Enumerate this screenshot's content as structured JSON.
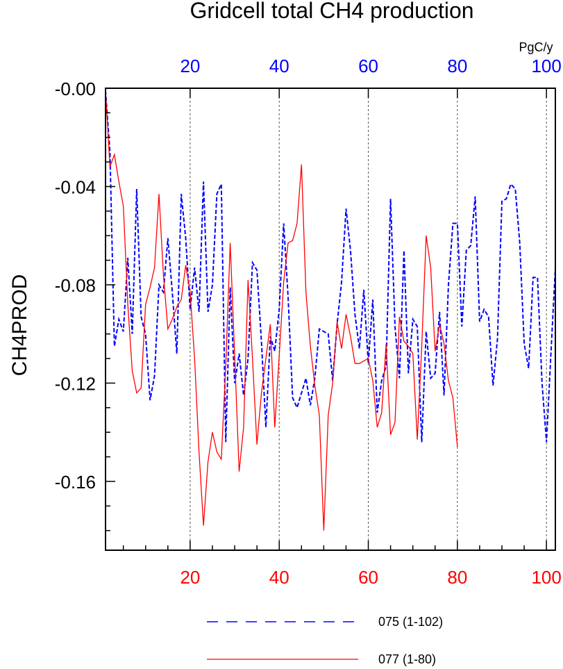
{
  "chart_data": {
    "type": "line",
    "title": "Gridcell total CH4 production",
    "ylabel": "CH4PROD",
    "units_label": "PgC/y",
    "ylim": [
      -0.188,
      0.0
    ],
    "yticks": [
      -0.0,
      -0.04,
      -0.08,
      -0.12,
      -0.16
    ],
    "ytick_labels": [
      "-0.00",
      "-0.04",
      "-0.08",
      "-0.12",
      "-0.16"
    ],
    "grid": "vertical dashed lines at 20, 40, 60, 80, 100",
    "legend_position": "bottom",
    "axes": {
      "top": {
        "color": "#0000ff",
        "xlim": [
          1,
          102
        ],
        "ticks": [
          20,
          40,
          60,
          80,
          100
        ],
        "tick_labels": [
          "20",
          "40",
          "60",
          "80",
          "100"
        ]
      },
      "bottom": {
        "color": "#ff0000",
        "xlim": [
          1,
          102
        ],
        "ticks": [
          20,
          40,
          60,
          80,
          100
        ],
        "tick_labels": [
          "20",
          "40",
          "60",
          "80",
          "100"
        ]
      }
    },
    "series": [
      {
        "name": "075 (1-102)",
        "color": "#0000ff",
        "style": "dashed",
        "x_start": 1,
        "values": [
          -0.001,
          -0.026,
          -0.105,
          -0.094,
          -0.099,
          -0.069,
          -0.1,
          -0.041,
          -0.093,
          -0.1,
          -0.127,
          -0.117,
          -0.08,
          -0.083,
          -0.061,
          -0.083,
          -0.108,
          -0.043,
          -0.061,
          -0.09,
          -0.073,
          -0.091,
          -0.038,
          -0.091,
          -0.08,
          -0.043,
          -0.039,
          -0.144,
          -0.081,
          -0.12,
          -0.108,
          -0.125,
          -0.11,
          -0.071,
          -0.074,
          -0.103,
          -0.138,
          -0.101,
          -0.107,
          -0.09,
          -0.055,
          -0.085,
          -0.126,
          -0.13,
          -0.124,
          -0.118,
          -0.129,
          -0.118,
          -0.098,
          -0.099,
          -0.1,
          -0.119,
          -0.096,
          -0.079,
          -0.049,
          -0.066,
          -0.092,
          -0.106,
          -0.082,
          -0.112,
          -0.086,
          -0.132,
          -0.119,
          -0.113,
          -0.045,
          -0.097,
          -0.118,
          -0.066,
          -0.116,
          -0.094,
          -0.097,
          -0.144,
          -0.099,
          -0.118,
          -0.116,
          -0.091,
          -0.125,
          -0.08,
          -0.055,
          -0.055,
          -0.097,
          -0.066,
          -0.064,
          -0.044,
          -0.095,
          -0.09,
          -0.093,
          -0.121,
          -0.102,
          -0.046,
          -0.045,
          -0.039,
          -0.041,
          -0.063,
          -0.104,
          -0.114,
          -0.077,
          -0.077,
          -0.12,
          -0.144,
          -0.108,
          -0.073
        ]
      },
      {
        "name": "077 (1-80)",
        "color": "#ff0000",
        "style": "solid",
        "x_start": 1,
        "values": [
          -0.001,
          -0.032,
          -0.027,
          -0.038,
          -0.048,
          -0.088,
          -0.115,
          -0.124,
          -0.122,
          -0.088,
          -0.081,
          -0.073,
          -0.043,
          -0.076,
          -0.098,
          -0.094,
          -0.089,
          -0.086,
          -0.072,
          -0.083,
          -0.11,
          -0.148,
          -0.178,
          -0.152,
          -0.14,
          -0.148,
          -0.151,
          -0.113,
          -0.063,
          -0.109,
          -0.156,
          -0.138,
          -0.078,
          -0.11,
          -0.145,
          -0.124,
          -0.11,
          -0.096,
          -0.138,
          -0.109,
          -0.079,
          -0.063,
          -0.062,
          -0.055,
          -0.031,
          -0.083,
          -0.105,
          -0.121,
          -0.133,
          -0.18,
          -0.133,
          -0.12,
          -0.095,
          -0.106,
          -0.092,
          -0.101,
          -0.112,
          -0.112,
          -0.111,
          -0.11,
          -0.119,
          -0.138,
          -0.132,
          -0.104,
          -0.141,
          -0.136,
          -0.093,
          -0.103,
          -0.105,
          -0.108,
          -0.143,
          -0.105,
          -0.06,
          -0.073,
          -0.107,
          -0.096,
          -0.104,
          -0.119,
          -0.126,
          -0.146
        ]
      }
    ]
  }
}
